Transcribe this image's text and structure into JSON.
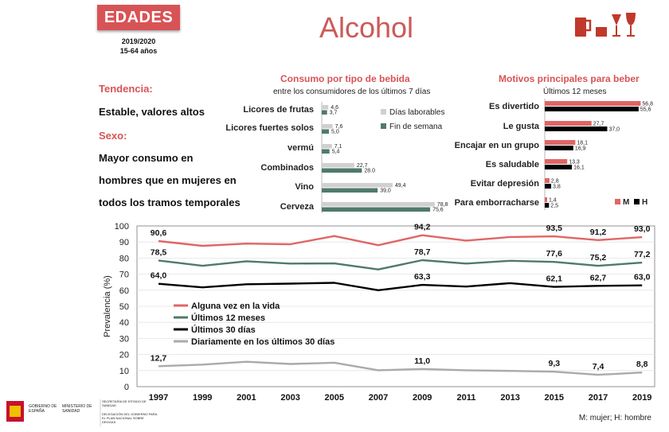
{
  "header": {
    "badge": "EDADES",
    "years": "2019/2020",
    "ages": "15-64 años",
    "title": "Alcohol"
  },
  "left": {
    "tendencia_title": "Tendencia:",
    "tendencia_text": "Estable, valores altos",
    "sexo_title": "Sexo:",
    "sexo_lines": [
      "Mayor consumo en",
      "hombres que en mujeres en",
      "todos los tramos temporales"
    ]
  },
  "colors": {
    "red": "#e06666",
    "green": "#4f7a6a",
    "black": "#000000",
    "gray": "#aaaaaa",
    "light_gray": "#d0d0d0",
    "title_red": "#d85356"
  },
  "footer": {
    "gov1": "GOBIERNO DE ESPAÑA",
    "gov2": "MINISTERIO DE SANIDAD",
    "gov3": "SECRETARÍA DE ESTADO DE SANIDAD",
    "gov4": "DELEGACIÓN DEL GOBIERNO PARA EL PLAN NACIONAL SOBRE DROGAS",
    "note": "M: mujer; H: hombre"
  },
  "chart_data": [
    {
      "type": "bar",
      "title": "Consumo por tipo de bebida",
      "subtitle": "entre los consumidores de los últimos 7 días",
      "categories": [
        "Licores de frutas",
        "Licores fuertes solos",
        "vermú",
        "Combinados",
        "Vino",
        "Cerveza"
      ],
      "series": [
        {
          "name": "Días laborables",
          "values": [
            4.6,
            7.6,
            7.1,
            22.7,
            49.4,
            78.8
          ]
        },
        {
          "name": "Fin de semana",
          "values": [
            3.7,
            5.0,
            5.4,
            28.0,
            39.0,
            75.6
          ]
        }
      ],
      "value_labels": [
        [
          "4,6",
          "7,6",
          "7,1",
          "22,7",
          "49,4",
          "78,8"
        ],
        [
          "3,7",
          "5,0",
          "5,4",
          "28.0",
          "39,0",
          "75,6"
        ]
      ],
      "orientation": "horizontal"
    },
    {
      "type": "bar",
      "title": "Motivos principales para beber",
      "subtitle": "Últimos 12 meses",
      "categories": [
        "Es divertido",
        "Le gusta",
        "Encajar en un grupo",
        "Es saludable",
        "Evitar depresión",
        "Para emborracharse"
      ],
      "series": [
        {
          "name": "M",
          "values": [
            56.8,
            27.7,
            18.1,
            13.3,
            2.8,
            1.4
          ]
        },
        {
          "name": "H",
          "values": [
            55.6,
            37.0,
            16.9,
            16.1,
            3.8,
            2.5
          ]
        }
      ],
      "value_labels": [
        [
          "56,8",
          "27,7",
          "18,1",
          "13,3",
          "2,8",
          "1,4"
        ],
        [
          "55,6",
          "37,0",
          "16,9",
          "16,1",
          "3,8",
          "2,5"
        ]
      ],
      "orientation": "horizontal"
    },
    {
      "type": "line",
      "ylabel": "Prevalencia (%)",
      "ylim": [
        0,
        100
      ],
      "yticks": [
        "0",
        "10",
        "20",
        "30",
        "40",
        "50",
        "60",
        "70",
        "80",
        "90",
        "100"
      ],
      "x": [
        "1997",
        "1999",
        "2001",
        "2003",
        "2005",
        "2007",
        "2009",
        "2011",
        "2013",
        "2015",
        "2017",
        "2019"
      ],
      "series": [
        {
          "name": "Alguna vez en la vida",
          "values": [
            90.6,
            87.6,
            89.0,
            88.6,
            93.7,
            88.0,
            94.2,
            90.9,
            93.1,
            93.5,
            91.2,
            93.0
          ],
          "labels": {
            "0": "90,6",
            "6": "94,2",
            "9": "93,5",
            "10": "91,2",
            "11": "93,0"
          }
        },
        {
          "name": "Últimos 12 meses",
          "values": [
            78.5,
            75.2,
            78.0,
            76.6,
            76.7,
            72.9,
            78.7,
            76.6,
            78.3,
            77.6,
            75.2,
            77.2
          ],
          "labels": {
            "0": "78,5",
            "6": "78,7",
            "9": "77,6",
            "10": "75,2",
            "11": "77,2"
          }
        },
        {
          "name": "Últimos 30 días",
          "values": [
            64.0,
            61.8,
            63.7,
            64.1,
            64.6,
            60.0,
            63.3,
            62.3,
            64.4,
            62.1,
            62.7,
            63.0
          ],
          "labels": {
            "0": "64,0",
            "6": "63,3",
            "9": "62,1",
            "10": "62,7",
            "11": "63,0"
          }
        },
        {
          "name": "Diariamente en los últimos 30 días",
          "values": [
            12.7,
            13.7,
            15.5,
            14.1,
            14.9,
            10.2,
            11.0,
            10.2,
            9.8,
            9.3,
            7.4,
            8.8
          ],
          "labels": {
            "0": "12,7",
            "6": "11,0",
            "9": "9,3",
            "10": "7,4",
            "11": "8,8"
          }
        }
      ]
    }
  ]
}
